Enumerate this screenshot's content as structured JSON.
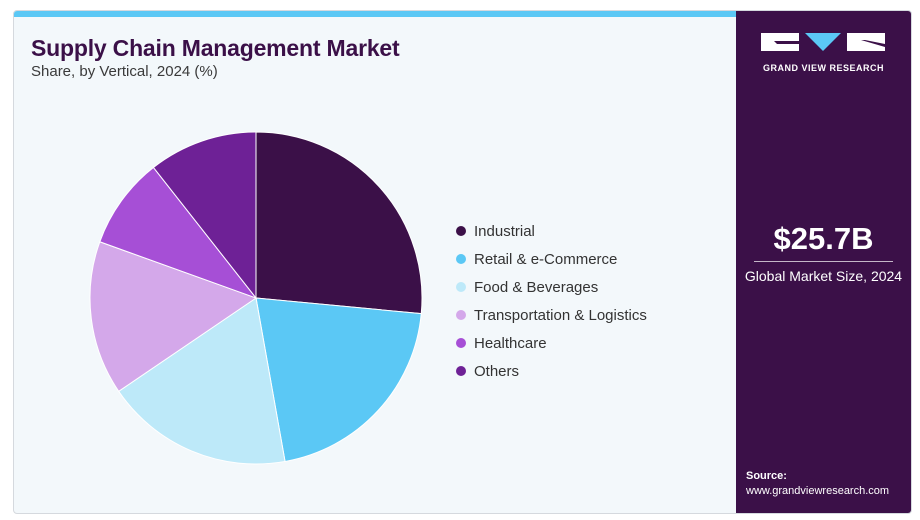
{
  "header": {
    "title": "Supply Chain Management Market",
    "subtitle": "Share, by Vertical, 2024 (%)"
  },
  "sidebar": {
    "logo_text": "GRAND VIEW RESEARCH",
    "market_size": "$25.7B",
    "market_size_label": "Global Market Size, 2024",
    "source_label": "Source:",
    "source_url": "www.grandviewresearch.com"
  },
  "colors": {
    "accent": "#5bc8f5",
    "brand": "#3b1048"
  },
  "chart_data": {
    "type": "pie",
    "title": "Supply Chain Management Market",
    "subtitle": "Share, by Vertical, 2024 (%)",
    "legend_placement": "right",
    "categories": [
      "Industrial",
      "Retail & e-Commerce",
      "Food & Beverages",
      "Transportation & Logistics",
      "Healthcare",
      "Others"
    ],
    "values": [
      26.5,
      20.7,
      18.3,
      15.0,
      8.9,
      10.6
    ],
    "colors": [
      "#3b1048",
      "#5bc8f5",
      "#bde9f9",
      "#d4a8ea",
      "#a64fd6",
      "#6e2196"
    ]
  }
}
